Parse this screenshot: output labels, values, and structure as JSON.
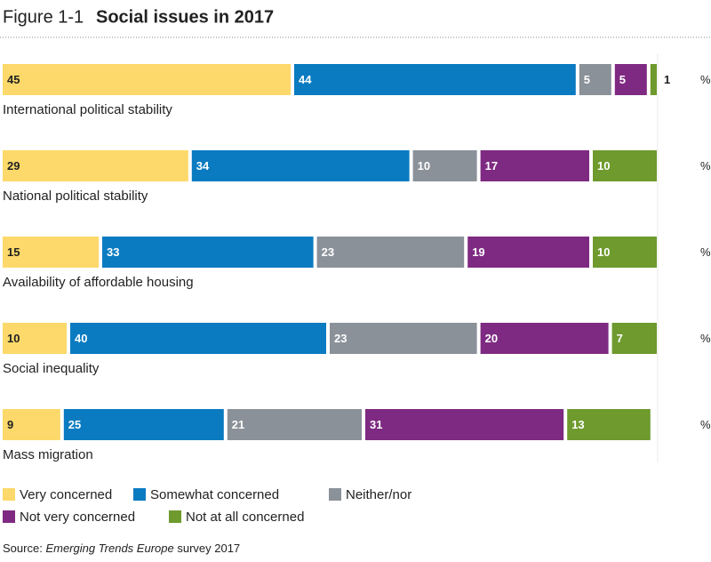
{
  "chart_data": {
    "type": "stacked-bar",
    "figure_label": "Figure 1-1",
    "title": "Social issues in 2017",
    "unit": "%",
    "categories": [
      "International political stability",
      "National political stability",
      "Availability of affordable housing",
      "Social inequality",
      "Mass migration"
    ],
    "series": [
      {
        "name": "Very concerned",
        "color": "#fcd96a",
        "values": [
          45,
          29,
          15,
          10,
          9
        ]
      },
      {
        "name": "Somewhat concerned",
        "color": "#0a7bc1",
        "values": [
          44,
          34,
          33,
          40,
          25
        ]
      },
      {
        "name": "Neither/nor",
        "color": "#8a9199",
        "values": [
          5,
          10,
          23,
          23,
          21
        ]
      },
      {
        "name": "Not very concerned",
        "color": "#7e2a82",
        "values": [
          5,
          17,
          19,
          20,
          31
        ]
      },
      {
        "name": "Not at all concerned",
        "color": "#6e9a2e",
        "values": [
          1,
          10,
          10,
          7,
          13
        ]
      }
    ],
    "source_prefix": "Source:",
    "source_name": "Emerging Trends Europe",
    "source_suffix": "survey 2017"
  }
}
